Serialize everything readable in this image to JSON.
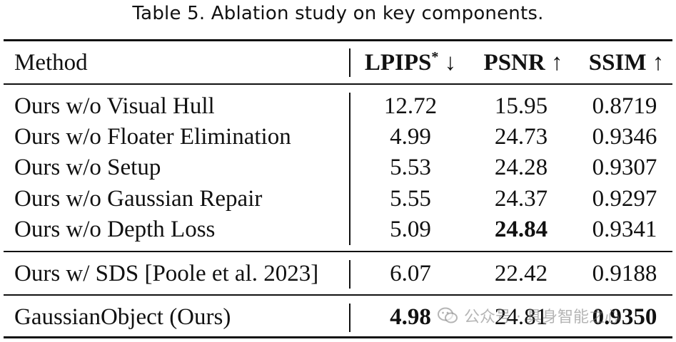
{
  "caption": "Table 5.  Ablation study on key components.",
  "columns": {
    "method": "Method",
    "lpips": "LPIPS",
    "lpips_sup": "*",
    "lpips_arrow": "↓",
    "psnr": "PSNR",
    "psnr_arrow": "↑",
    "ssim": "SSIM",
    "ssim_arrow": "↑"
  },
  "rows": [
    {
      "method": "Ours w/o Visual Hull",
      "lpips": "12.72",
      "psnr": "15.95",
      "ssim": "0.8719"
    },
    {
      "method": "Ours w/o Floater Elimination",
      "lpips": "4.99",
      "psnr": "24.73",
      "ssim": "0.9346"
    },
    {
      "method": "Ours w/o Setup",
      "lpips": "5.53",
      "psnr": "24.28",
      "ssim": "0.9307"
    },
    {
      "method": "Ours w/o Gaussian Repair",
      "lpips": "5.55",
      "psnr": "24.37",
      "ssim": "0.9297"
    },
    {
      "method": "Ours w/o Depth Loss",
      "lpips": "5.09",
      "psnr": "24.84",
      "ssim": "0.9341"
    },
    {
      "method": "Ours w/ SDS [Poole et al. 2023]",
      "lpips": "6.07",
      "psnr": "22.42",
      "ssim": "0.9188"
    },
    {
      "method": "GaussianObject (Ours)",
      "lpips": "4.98",
      "psnr": "24.81",
      "ssim": "0.9350"
    }
  ],
  "watermark": {
    "text": "公众号 · 具身智能之心",
    "icon": "wechat-icon"
  }
}
